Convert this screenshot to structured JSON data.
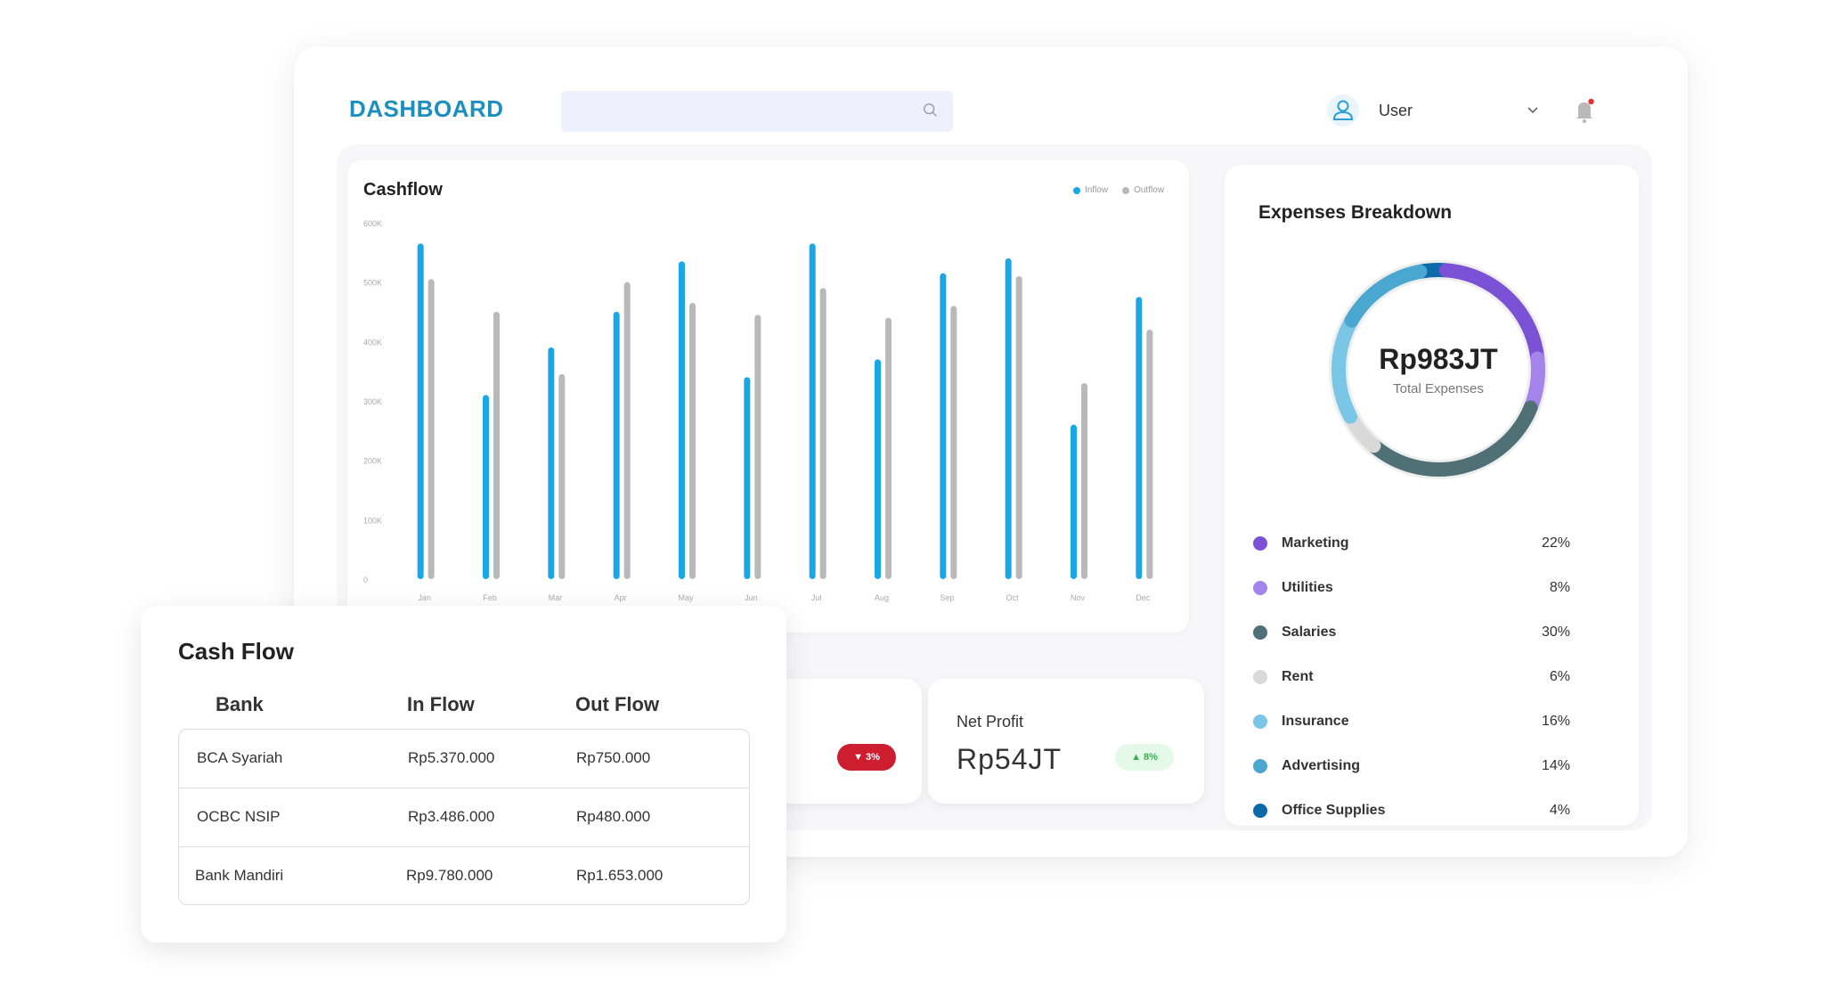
{
  "header": {
    "brand": "DASHBOARD",
    "search_placeholder": "",
    "user_name": "User"
  },
  "cashflow_chart": {
    "title": "Cashflow",
    "legend": [
      {
        "label": "Inflow",
        "color": "#1aa7e8"
      },
      {
        "label": "Outflow",
        "color": "#b9b9b9"
      }
    ]
  },
  "chart_data": {
    "type": "bar",
    "title": "Cashflow",
    "categories": [
      "Jan",
      "Feb",
      "Mar",
      "Apr",
      "May",
      "Jun",
      "Jul",
      "Aug",
      "Sep",
      "Oct",
      "Nov",
      "Dec"
    ],
    "y_ticks": [
      "600K",
      "500K",
      "400K",
      "300K",
      "200K",
      "100K",
      "0"
    ],
    "ylim": [
      0,
      600
    ],
    "series": [
      {
        "name": "Inflow",
        "color": "#1aa7e8",
        "values": [
          565,
          310,
          390,
          450,
          535,
          340,
          565,
          370,
          515,
          540,
          260,
          475
        ]
      },
      {
        "name": "Outflow",
        "color": "#b9b9b9",
        "values": [
          505,
          450,
          345,
          500,
          465,
          445,
          490,
          440,
          460,
          510,
          330,
          420
        ]
      }
    ]
  },
  "expenses": {
    "title": "Expenses Breakdown",
    "total": "Rp983JT",
    "total_label": "Total Expenses",
    "items": [
      {
        "name": "Marketing",
        "percent": "22%",
        "value": 22,
        "color": "#7b52d6"
      },
      {
        "name": "Utilities",
        "percent": "8%",
        "value": 8,
        "color": "#a384ea"
      },
      {
        "name": "Salaries",
        "percent": "30%",
        "value": 30,
        "color": "#4f7175"
      },
      {
        "name": "Rent",
        "percent": "6%",
        "value": 6,
        "color": "#d9d9d9"
      },
      {
        "name": "Insurance",
        "percent": "16%",
        "value": 16,
        "color": "#79c6e6"
      },
      {
        "name": "Advertising",
        "percent": "14%",
        "value": 14,
        "color": "#4aa8d0"
      },
      {
        "name": "Office Supplies",
        "percent": "4%",
        "value": 4,
        "color": "#0d6aa8"
      }
    ]
  },
  "stats": {
    "left_badge": "▼ 3%",
    "net_profit_label": "Net Profit",
    "net_profit_value": "Rp54JT",
    "net_profit_badge": "▲ 8%"
  },
  "cash_flow_table": {
    "title": "Cash Flow",
    "columns": [
      "Bank",
      "In Flow",
      "Out Flow"
    ],
    "rows": [
      [
        "BCA Syariah",
        "Rp5.370.000",
        "Rp750.000"
      ],
      [
        "OCBC NSIP",
        "Rp3.486.000",
        "Rp480.000"
      ],
      [
        "Bank Mandiri",
        "Rp9.780.000",
        "Rp1.653.000"
      ]
    ]
  }
}
